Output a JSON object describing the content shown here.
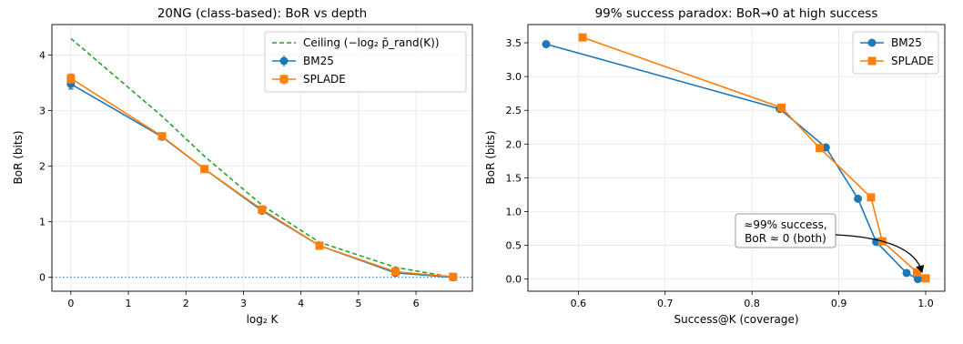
{
  "chart_data": [
    {
      "type": "line",
      "title": "20NG (class-based): BoR vs depth",
      "xlabel": "log₂ K",
      "ylabel": "BoR (bits)",
      "xlim": [
        -0.33,
        6.98
      ],
      "ylim": [
        -0.25,
        4.55
      ],
      "xticks": [
        0,
        1,
        2,
        3,
        4,
        5,
        6
      ],
      "yticks": [
        0,
        1,
        2,
        3,
        4
      ],
      "grid": true,
      "legend_position": "top-right",
      "reference_line": {
        "y": 0,
        "style": "dotted",
        "color": "#1f77b4"
      },
      "series": [
        {
          "name": "Ceiling (−log₂ p̄_rand(K))",
          "style": "dashed",
          "color": "#2ca02c",
          "x": [
            0,
            1.585,
            2.322,
            3.322,
            4.322,
            5.644,
            6.644
          ],
          "y": [
            4.3,
            2.9,
            2.18,
            1.3,
            0.63,
            0.18,
            0.0
          ]
        },
        {
          "name": "BM25",
          "marker": "circle",
          "color": "#1f77b4",
          "error_bars": true,
          "x": [
            0,
            1.585,
            2.322,
            3.322,
            4.322,
            5.644,
            6.644
          ],
          "y": [
            3.48,
            2.53,
            1.95,
            1.2,
            0.57,
            0.08,
            0.0
          ],
          "err": [
            0.09,
            0.02,
            0.02,
            0.02,
            0.02,
            0.02,
            0.0
          ]
        },
        {
          "name": "SPLADE",
          "marker": "square",
          "color": "#ff7f0e",
          "error_bars": true,
          "x": [
            0,
            1.585,
            2.322,
            3.322,
            4.322,
            5.644,
            6.644
          ],
          "y": [
            3.58,
            2.54,
            1.95,
            1.22,
            0.57,
            0.1,
            0.01
          ],
          "err": [
            0.08,
            0.02,
            0.02,
            0.02,
            0.02,
            0.02,
            0.0
          ]
        }
      ]
    },
    {
      "type": "line",
      "title": "99% success paradox: BoR→0 at high success",
      "xlabel": "Success@K (coverage)",
      "ylabel": "BoR (bits)",
      "xlim": [
        0.542,
        1.022
      ],
      "ylim": [
        -0.18,
        3.77
      ],
      "xticks": [
        0.6,
        0.7,
        0.8,
        0.9,
        1.0
      ],
      "xtick_labels": [
        "0.6",
        "0.7",
        "0.8",
        "0.9",
        "1.0"
      ],
      "yticks": [
        0.0,
        0.5,
        1.0,
        1.5,
        2.0,
        2.5,
        3.0,
        3.5
      ],
      "ytick_labels": [
        "0.0",
        "0.5",
        "1.0",
        "1.5",
        "2.0",
        "2.5",
        "3.0",
        "3.5"
      ],
      "grid": true,
      "legend_position": "top-right",
      "annotation": {
        "lines": [
          "≈99% success,",
          "BoR ≈ 0 (both)"
        ],
        "arrow_to": [
          0.996,
          0.02
        ]
      },
      "series": [
        {
          "name": "BM25",
          "marker": "circle",
          "color": "#1f77b4",
          "x": [
            0.563,
            0.832,
            0.885,
            0.922,
            0.943,
            0.978,
            0.991
          ],
          "y": [
            3.48,
            2.52,
            1.95,
            1.19,
            0.55,
            0.09,
            0.0
          ]
        },
        {
          "name": "SPLADE",
          "marker": "square",
          "color": "#ff7f0e",
          "x": [
            0.605,
            0.834,
            0.878,
            0.937,
            0.95,
            0.99,
            1.0
          ],
          "y": [
            3.58,
            2.54,
            1.94,
            1.21,
            0.56,
            0.1,
            0.01
          ]
        }
      ]
    }
  ]
}
